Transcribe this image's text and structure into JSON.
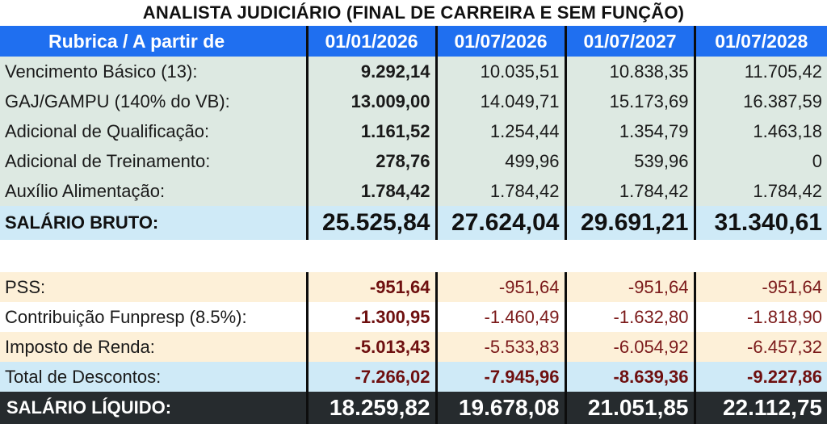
{
  "title": "ANALISTA JUDICIÁRIO (FINAL DE CARREIRA E SEM FUNÇÃO)",
  "header": [
    "Rubrica / A partir de",
    "01/01/2026",
    "01/07/2026",
    "01/07/2027",
    "01/07/2028"
  ],
  "earnings": [
    {
      "label": "Vencimento Básico (13):",
      "values": [
        "9.292,14",
        "10.035,51",
        "10.838,35",
        "11.705,42"
      ]
    },
    {
      "label": "GAJ/GAMPU (140% do VB):",
      "values": [
        "13.009,00",
        "14.049,71",
        "15.173,69",
        "16.387,59"
      ]
    },
    {
      "label": "Adicional de Qualificação:",
      "values": [
        "1.161,52",
        "1.254,44",
        "1.354,79",
        "1.463,18"
      ]
    },
    {
      "label": "Adicional de Treinamento:",
      "values": [
        "278,76",
        "499,96",
        "539,96",
        "0"
      ]
    },
    {
      "label": "Auxílio Alimentação:",
      "values": [
        "1.784,42",
        "1.784,42",
        "1.784,42",
        "1.784,42"
      ]
    }
  ],
  "gross": {
    "label": "SALÁRIO BRUTO:",
    "values": [
      "25.525,84",
      "27.624,04",
      "29.691,21",
      "31.340,61"
    ]
  },
  "deductions": [
    {
      "label": "PSS:",
      "values": [
        "-951,64",
        "-951,64",
        "-951,64",
        "-951,64"
      ]
    },
    {
      "label": "Contribuição Funpresp (8.5%):",
      "values": [
        "-1.300,95",
        "-1.460,49",
        "-1.632,80",
        "-1.818,90"
      ]
    },
    {
      "label": "Imposto de Renda:",
      "values": [
        "-5.013,43",
        "-5.533,83",
        "-6.054,92",
        "-6.457,32"
      ]
    }
  ],
  "total_deductions": {
    "label": "Total de Descontos:",
    "values": [
      "-7.266,02",
      "-7.945,96",
      "-8.639,36",
      "-9.227,86"
    ]
  },
  "net": {
    "label": "SALÁRIO LÍQUIDO:",
    "values": [
      "18.259,82",
      "19.678,08",
      "21.051,85",
      "22.112,75"
    ]
  },
  "colors": {
    "header_bg": "#1f6ff0",
    "earnings_bg": "#dde9e2",
    "total_bg": "#cfeaf7",
    "deduction_bg": "#fdf0d8",
    "net_bg": "#262b2e",
    "negative_text": "#7b1a1a"
  }
}
